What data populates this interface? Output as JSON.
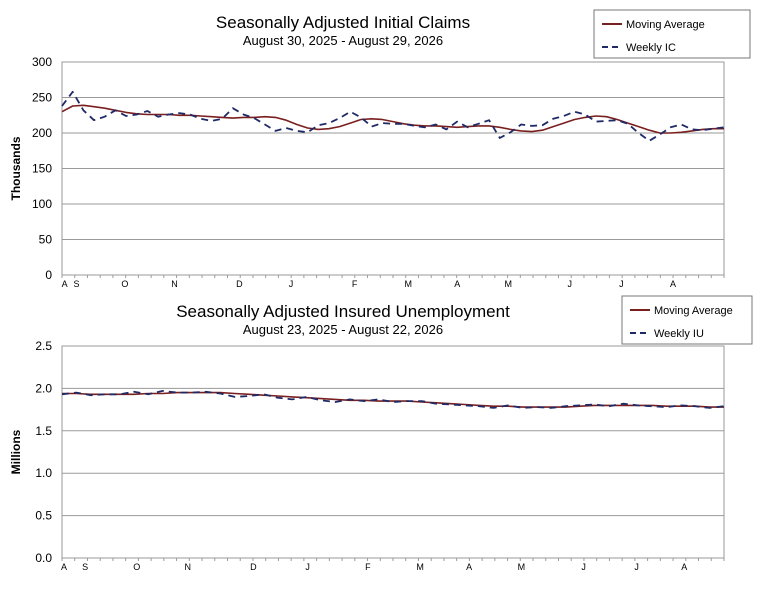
{
  "colors": {
    "moving_average": "#7a1f1f",
    "weekly": "#1f2a66",
    "grid": "#9a9a9a",
    "frame": "#9a9a9a"
  },
  "chart_data": [
    {
      "type": "line",
      "title": "Seasonally Adjusted Initial Claims",
      "subtitle": "August 30, 2025 - August 29, 2026",
      "ylabel": "Thousands",
      "xlabel": "",
      "ylim": [
        0,
        300
      ],
      "yticks": [
        "0",
        "50",
        "100",
        "150",
        "200",
        "250",
        "300"
      ],
      "xticks": [
        "A",
        "S",
        "O",
        "N",
        "D",
        "J",
        "F",
        "M",
        "A",
        "M",
        "J",
        "J",
        "A"
      ],
      "grid": "horizontal",
      "legend_position": "top-right",
      "series": [
        {
          "name": "Moving Average",
          "style": "solid",
          "values": [
            230,
            238,
            239,
            237,
            235,
            232,
            229,
            227,
            226,
            226,
            226,
            225,
            225,
            224,
            223,
            222,
            221,
            222,
            222,
            223,
            222,
            218,
            212,
            207,
            205,
            206,
            209,
            214,
            219,
            220,
            219,
            216,
            213,
            211,
            210,
            210,
            209,
            208,
            209,
            210,
            210,
            208,
            205,
            203,
            202,
            204,
            209,
            214,
            219,
            222,
            224,
            223,
            219,
            214,
            209,
            204,
            200,
            200,
            201,
            203,
            205,
            206,
            206
          ]
        },
        {
          "name": "Weekly IC",
          "style": "dashed",
          "values": [
            238,
            258,
            232,
            218,
            223,
            232,
            224,
            226,
            231,
            223,
            226,
            228,
            226,
            220,
            217,
            220,
            235,
            226,
            221,
            212,
            203,
            207,
            203,
            201,
            211,
            214,
            221,
            230,
            222,
            209,
            214,
            213,
            213,
            210,
            208,
            212,
            205,
            216,
            208,
            213,
            218,
            193,
            201,
            212,
            210,
            211,
            220,
            224,
            230,
            226,
            216,
            217,
            218,
            213,
            200,
            189,
            198,
            208,
            212,
            205,
            204,
            206,
            208
          ]
        }
      ]
    },
    {
      "type": "line",
      "title": "Seasonally Adjusted Insured Unemployment",
      "subtitle": "August 23, 2025 - August 22, 2026",
      "ylabel": "Millions",
      "xlabel": "",
      "ylim": [
        0.0,
        2.5
      ],
      "yticks": [
        "0.0",
        "0.5",
        "1.0",
        "1.5",
        "2.0",
        "2.5"
      ],
      "xticks": [
        "A",
        "S",
        "O",
        "N",
        "D",
        "J",
        "F",
        "M",
        "A",
        "M",
        "J",
        "J",
        "A"
      ],
      "grid": "horizontal",
      "legend_position": "top-right",
      "series": [
        {
          "name": "Moving Average",
          "style": "solid",
          "values": [
            1.94,
            1.94,
            1.93,
            1.93,
            1.93,
            1.93,
            1.94,
            1.94,
            1.95,
            1.95,
            1.95,
            1.95,
            1.94,
            1.93,
            1.92,
            1.91,
            1.9,
            1.89,
            1.88,
            1.87,
            1.86,
            1.86,
            1.85,
            1.85,
            1.85,
            1.84,
            1.83,
            1.82,
            1.81,
            1.8,
            1.79,
            1.79,
            1.78,
            1.78,
            1.78,
            1.78,
            1.79,
            1.8,
            1.8,
            1.8,
            1.8,
            1.8,
            1.79,
            1.79,
            1.79,
            1.78,
            1.78
          ]
        },
        {
          "name": "Weekly IU",
          "style": "dashed",
          "values": [
            1.93,
            1.95,
            1.92,
            1.93,
            1.93,
            1.96,
            1.93,
            1.97,
            1.95,
            1.95,
            1.96,
            1.94,
            1.9,
            1.91,
            1.93,
            1.89,
            1.87,
            1.9,
            1.86,
            1.84,
            1.87,
            1.85,
            1.87,
            1.84,
            1.85,
            1.85,
            1.82,
            1.81,
            1.8,
            1.79,
            1.77,
            1.8,
            1.77,
            1.78,
            1.77,
            1.79,
            1.8,
            1.81,
            1.79,
            1.82,
            1.8,
            1.79,
            1.78,
            1.8,
            1.79,
            1.77,
            1.79
          ]
        }
      ]
    }
  ]
}
